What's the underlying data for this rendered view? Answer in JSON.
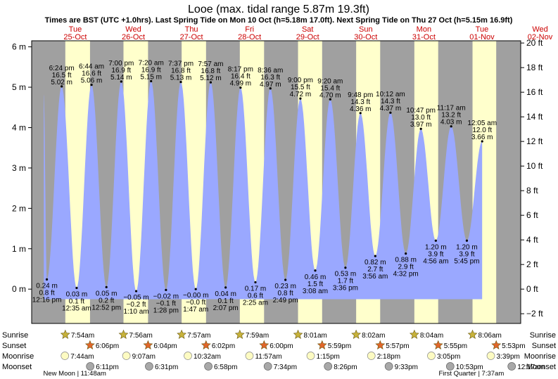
{
  "chart_data": {
    "type": "area",
    "title": "Looe (max. tidal range 5.87m 19.3ft)",
    "subtitle": "Times are BST (UTC +1.0hrs). Last Spring Tide on Mon 10 Oct (h=5.18m 17.0ft). Next Spring Tide on Thu 27 Oct (h=5.15m 16.9ft)",
    "ylabel_left_unit": "m",
    "ylabel_right_unit": "ft",
    "ylim_m": [
      -0.85,
      6.15
    ],
    "ylim_ft": [
      -2.79,
      20.18
    ],
    "left_ticks": [
      {
        "value": 0,
        "label": "0 m"
      },
      {
        "value": 1,
        "label": "1 m"
      },
      {
        "value": 2,
        "label": "2 m"
      },
      {
        "value": 3,
        "label": "3 m"
      },
      {
        "value": 4,
        "label": "4 m"
      },
      {
        "value": 5,
        "label": "5 m"
      },
      {
        "value": 6,
        "label": "6 m"
      }
    ],
    "right_ticks": [
      {
        "value": -2,
        "label": "−2 ft"
      },
      {
        "value": 0,
        "label": "0 ft"
      },
      {
        "value": 2,
        "label": "2 ft"
      },
      {
        "value": 4,
        "label": "4 ft"
      },
      {
        "value": 6,
        "label": "6 ft"
      },
      {
        "value": 8,
        "label": "8 ft"
      },
      {
        "value": 10,
        "label": "10 ft"
      },
      {
        "value": 12,
        "label": "12 ft"
      },
      {
        "value": 14,
        "label": "14 ft"
      },
      {
        "value": 16,
        "label": "16 ft"
      },
      {
        "value": 18,
        "label": "18 ft"
      },
      {
        "value": 20,
        "label": "20 ft"
      }
    ],
    "x_range_hours": [
      -6,
      196
    ],
    "x_axis_origin": "2022-10-25 00:00 BST",
    "days": [
      {
        "name": "Tue",
        "date": "25-Oct",
        "sunrise_h": 7.9,
        "sunset_h": 18.1
      },
      {
        "name": "Wed",
        "date": "26-Oct",
        "sunrise_h": 7.93,
        "sunset_h": 18.07
      },
      {
        "name": "Thu",
        "date": "27-Oct",
        "sunrise_h": 7.95,
        "sunset_h": 18.03
      },
      {
        "name": "Fri",
        "date": "28-Oct",
        "sunrise_h": 7.98,
        "sunset_h": 18.0
      },
      {
        "name": "Sat",
        "date": "29-Oct",
        "sunrise_h": 8.02,
        "sunset_h": 17.98
      },
      {
        "name": "Sun",
        "date": "30-Oct",
        "sunrise_h": 8.03,
        "sunset_h": 17.95
      },
      {
        "name": "Mon",
        "date": "31-Oct",
        "sunrise_h": 8.07,
        "sunset_h": 17.92
      },
      {
        "name": "Tue",
        "date": "01-Nov",
        "sunrise_h": 8.1,
        "sunset_h": 17.88
      },
      {
        "name": "Wed",
        "date": "02-Nov",
        "sunrise_h": 8.12,
        "sunset_h": 17.85
      }
    ],
    "tides": [
      {
        "t": -1.0,
        "h": 4.82
      },
      {
        "t": 0.27,
        "h": 0.24,
        "time": "12:16 pm",
        "m": "0.24 m",
        "ft": "0.8 ft"
      },
      {
        "t": 6.4,
        "h": 5.02,
        "time": "6:24 pm",
        "m": "5.02 m",
        "ft": "16.5 ft"
      },
      {
        "t": 12.58,
        "h": 0.03,
        "time": "12:35 am",
        "m": "0.03 m",
        "ft": "0.1 ft"
      },
      {
        "t": 18.73,
        "h": 5.06,
        "time": "6:44 am",
        "m": "5.06 m",
        "ft": "16.6 ft"
      },
      {
        "t": 24.87,
        "h": 0.05,
        "time": "12:52 pm",
        "m": "0.05 m",
        "ft": "0.2 ft"
      },
      {
        "t": 31.0,
        "h": 5.14,
        "time": "7:00 pm",
        "m": "5.14 m",
        "ft": "16.9 ft"
      },
      {
        "t": 37.17,
        "h": -0.05,
        "time": "1:10 am",
        "m": "−0.05 m",
        "ft": "−0.2 ft"
      },
      {
        "t": 43.33,
        "h": 5.15,
        "time": "7:20 am",
        "m": "5.15 m",
        "ft": "16.9 ft"
      },
      {
        "t": 49.47,
        "h": -0.02,
        "time": "1:28 pm",
        "m": "−0.02 m",
        "ft": "−0.1 ft"
      },
      {
        "t": 55.62,
        "h": 5.13,
        "time": "7:37 pm",
        "m": "5.13 m",
        "ft": "16.8 ft"
      },
      {
        "t": 61.78,
        "h": -0.0,
        "time": "1:47 am",
        "m": "−0.00 m",
        "ft": "−0.0 ft"
      },
      {
        "t": 67.95,
        "h": 5.12,
        "time": "7:57 am",
        "m": "5.12 m",
        "ft": "16.8 ft"
      },
      {
        "t": 74.12,
        "h": 0.04,
        "time": "2:07 pm",
        "m": "0.04 m",
        "ft": "0.1 ft"
      },
      {
        "t": 80.28,
        "h": 4.99,
        "time": "8:17 pm",
        "m": "4.99 m",
        "ft": "16.4 ft"
      },
      {
        "t": 86.42,
        "h": 0.17,
        "time": "2:25 am",
        "m": "0.17 m",
        "ft": "0.6 ft"
      },
      {
        "t": 92.6,
        "h": 4.97,
        "time": "8:36 am",
        "m": "4.97 m",
        "ft": "16.3 ft"
      },
      {
        "t": 98.82,
        "h": 0.23,
        "time": "2:49 pm",
        "m": "0.23 m",
        "ft": "0.8 ft"
      },
      {
        "t": 105.0,
        "h": 4.72,
        "time": "9:00 pm",
        "m": "4.72 m",
        "ft": "15.5 ft"
      },
      {
        "t": 111.13,
        "h": 0.46,
        "time": "3:08 am",
        "m": "0.46 m",
        "ft": "1.5 ft"
      },
      {
        "t": 117.33,
        "h": 4.7,
        "time": "9:20 am",
        "m": "4.70 m",
        "ft": "15.4 ft"
      },
      {
        "t": 123.6,
        "h": 0.53,
        "time": "3:36 pm",
        "m": "0.53 m",
        "ft": "1.7 ft"
      },
      {
        "t": 129.8,
        "h": 4.36,
        "time": "9:48 pm",
        "m": "4.36 m",
        "ft": "14.3 ft"
      },
      {
        "t": 135.93,
        "h": 0.82,
        "time": "3:56 am",
        "m": "0.82 m",
        "ft": "2.7 ft"
      },
      {
        "t": 142.2,
        "h": 4.37,
        "time": "10:12 am",
        "m": "4.37 m",
        "ft": "14.3 ft"
      },
      {
        "t": 148.53,
        "h": 0.88,
        "time": "4:32 pm",
        "m": "0.88 m",
        "ft": "2.9 ft"
      },
      {
        "t": 154.78,
        "h": 3.97,
        "time": "10:47 pm",
        "m": "3.97 m",
        "ft": "13.0 ft"
      },
      {
        "t": 160.93,
        "h": 1.2,
        "time": "4:56 am",
        "m": "1.20 m",
        "ft": "3.9 ft"
      },
      {
        "t": 167.28,
        "h": 4.03,
        "time": "11:17 am",
        "m": "4.03 m",
        "ft": "13.2 ft"
      },
      {
        "t": 173.75,
        "h": 1.2,
        "time": "5:45 pm",
        "m": "1.20 m",
        "ft": "3.9 ft"
      },
      {
        "t": 180.08,
        "h": 3.66,
        "time": "12:05 am",
        "m": "3.66 m",
        "ft": "12.0 ft"
      }
    ],
    "footer": {
      "row_labels": [
        "Sunrise",
        "Sunset",
        "Moonrise",
        "Moonset"
      ],
      "sunrise": [
        {
          "t": 7.9,
          "label": "7:54am"
        },
        {
          "t": 31.93,
          "label": "7:56am"
        },
        {
          "t": 55.95,
          "label": "7:57am"
        },
        {
          "t": 79.98,
          "label": "7:59am"
        },
        {
          "t": 104.02,
          "label": "8:01am"
        },
        {
          "t": 128.03,
          "label": "8:02am"
        },
        {
          "t": 152.07,
          "label": "8:04am"
        },
        {
          "t": 176.1,
          "label": "8:06am"
        }
      ],
      "sunset": [
        {
          "t": 18.1,
          "label": "6:06pm"
        },
        {
          "t": 42.07,
          "label": "6:04pm"
        },
        {
          "t": 66.03,
          "label": "6:02pm"
        },
        {
          "t": 90.0,
          "label": "6:00pm"
        },
        {
          "t": 113.98,
          "label": "5:59pm"
        },
        {
          "t": 137.95,
          "label": "5:57pm"
        },
        {
          "t": 161.92,
          "label": "5:55pm"
        },
        {
          "t": 185.88,
          "label": "5:53pm"
        }
      ],
      "moonrise": [
        {
          "t": 7.73,
          "label": "7:44am"
        },
        {
          "t": 33.12,
          "label": "9:07am"
        },
        {
          "t": 58.53,
          "label": "10:32am"
        },
        {
          "t": 83.95,
          "label": "11:57am"
        },
        {
          "t": 109.25,
          "label": "1:15pm"
        },
        {
          "t": 134.3,
          "label": "2:18pm"
        },
        {
          "t": 159.08,
          "label": "3:05pm"
        },
        {
          "t": 183.65,
          "label": "3:39pm"
        }
      ],
      "moonset": [
        {
          "t": 18.18,
          "label": "6:11pm"
        },
        {
          "t": 42.52,
          "label": "6:31pm"
        },
        {
          "t": 66.97,
          "label": "6:58pm"
        },
        {
          "t": 91.57,
          "label": "7:34pm"
        },
        {
          "t": 116.43,
          "label": "8:26pm"
        },
        {
          "t": 141.55,
          "label": "9:33pm"
        },
        {
          "t": 166.88,
          "label": "10:53pm"
        },
        {
          "t": 192.28,
          "label": "12:17am"
        }
      ],
      "moon_phases": [
        {
          "t": 11.8,
          "label": "New Moon | 11:48am"
        },
        {
          "t": 175.62,
          "label": "First Quarter | 7:37am"
        }
      ]
    },
    "colors": {
      "night": "#a0a0a0",
      "day": "#ffffcc",
      "water": "#9aa8ff",
      "day_label": "#cc0000",
      "sun_star": "#c7b23a",
      "sunset_star": "#e0662a",
      "moonrise": "#fdfbc2",
      "moonset": "#a8a8a8"
    }
  }
}
